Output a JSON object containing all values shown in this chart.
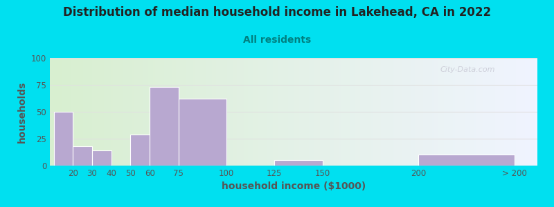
{
  "title": "Distribution of median household income in Lakehead, CA in 2022",
  "subtitle": "All residents",
  "xlabel": "household income ($1000)",
  "ylabel": "households",
  "bar_heights": [
    50,
    18,
    14,
    0,
    29,
    73,
    62,
    0,
    5,
    0,
    10
  ],
  "bar_positions": [
    15,
    25,
    35,
    45,
    55,
    67.5,
    87.5,
    112.5,
    137.5,
    175,
    225
  ],
  "bar_widths": [
    10,
    10,
    10,
    10,
    10,
    15,
    25,
    25,
    25,
    50,
    50
  ],
  "bar_color": "#b8a8d0",
  "bar_edgecolor": "#ffffff",
  "ylim": [
    0,
    100
  ],
  "yticks": [
    0,
    25,
    50,
    75,
    100
  ],
  "xtick_positions": [
    20,
    30,
    40,
    50,
    60,
    75,
    100,
    125,
    150,
    200,
    250
  ],
  "xtick_labels": [
    "20",
    "30",
    "40",
    "50",
    "60",
    "75",
    "100",
    "125",
    "150",
    "200",
    "> 200"
  ],
  "xlim_left": 8,
  "xlim_right": 262,
  "bg_outer": "#00e0f0",
  "bg_plot_left": "#d8efd0",
  "bg_plot_right": "#f0f4ff",
  "title_color": "#222222",
  "subtitle_color": "#008080",
  "axis_label_color": "#555555",
  "tick_label_color": "#555555",
  "watermark_text": "City-Data.com",
  "watermark_color": "#c8c8d4",
  "grid_color": "#e0e0e0",
  "title_fontsize": 12,
  "subtitle_fontsize": 10,
  "label_fontsize": 10,
  "tick_fontsize": 8.5
}
